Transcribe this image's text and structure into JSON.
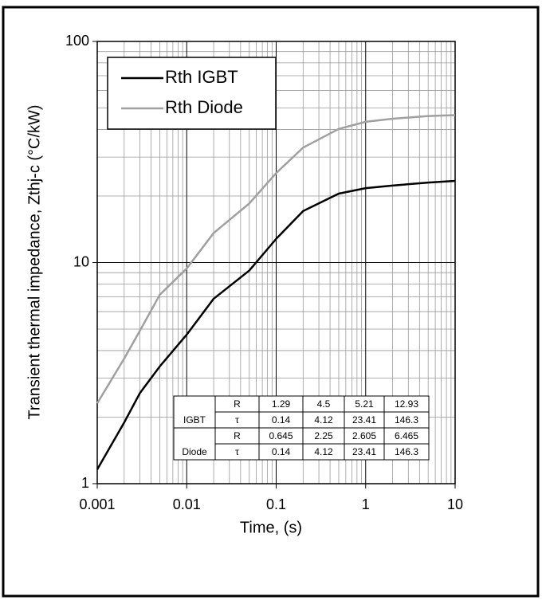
{
  "chart_data": {
    "type": "line",
    "xlabel": "Time, (s)",
    "ylabel": "Transient thermal impedance, Zthj-c (°C/kW)",
    "x": [
      0.001,
      0.002,
      0.003,
      0.005,
      0.01,
      0.02,
      0.05,
      0.1,
      0.2,
      0.5,
      1,
      2,
      5,
      10
    ],
    "series": [
      {
        "name": "Rth IGBT",
        "color": "#000000",
        "values": [
          1.16,
          1.89,
          2.57,
          3.39,
          4.72,
          6.86,
          9.2,
          12.8,
          17.1,
          20.5,
          21.7,
          22.3,
          23.0,
          23.4
        ]
      },
      {
        "name": "Rth Diode",
        "color": "#a0a0a0",
        "values": [
          2.31,
          3.68,
          4.92,
          7.15,
          9.4,
          13.6,
          18.5,
          25.4,
          33.1,
          40.2,
          43.3,
          44.7,
          46.0,
          46.4
        ]
      }
    ],
    "xlim": [
      0.001,
      10
    ],
    "ylim": [
      1,
      100
    ],
    "xticks": [
      0.001,
      0.01,
      0.1,
      1,
      10
    ],
    "yticks": [
      1,
      10,
      100
    ],
    "xscale": "log",
    "yscale": "log",
    "grid": true,
    "minor_grid": true,
    "legend": "upper left",
    "table": {
      "groups": [
        {
          "label": "IGBT",
          "rows": [
            {
              "param": "R",
              "values": [
                1.29,
                4.5,
                5.21,
                12.93
              ]
            },
            {
              "param": "τ",
              "values": [
                0.14,
                4.12,
                23.41,
                146.3
              ]
            }
          ]
        },
        {
          "label": "Diode",
          "rows": [
            {
              "param": "R",
              "values": [
                0.645,
                2.25,
                2.605,
                6.465
              ]
            },
            {
              "param": "τ",
              "values": [
                0.14,
                4.12,
                23.41,
                146.3
              ]
            }
          ]
        }
      ]
    }
  }
}
